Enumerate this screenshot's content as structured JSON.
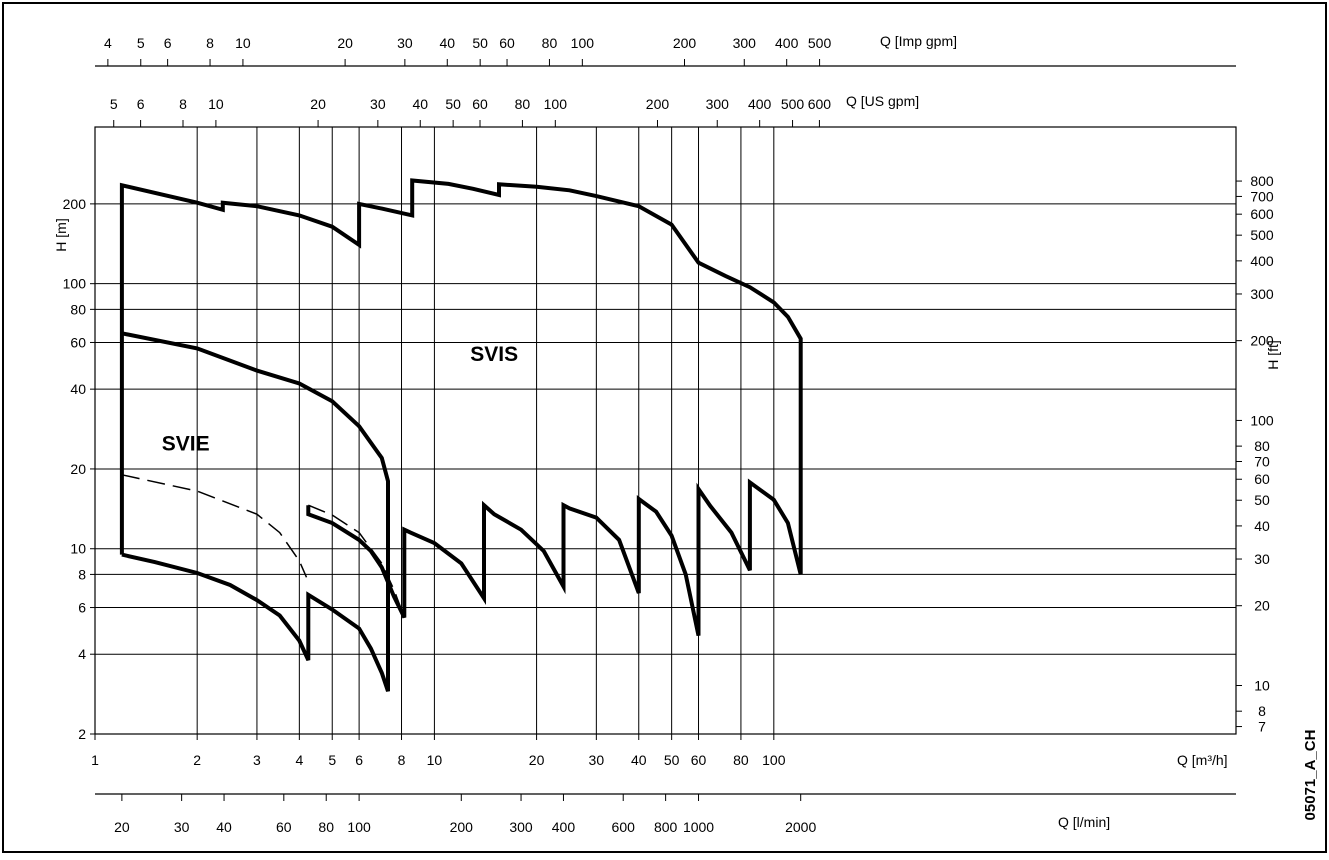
{
  "chart_data": {
    "type": "line",
    "x_scale": "log",
    "y_scale": "log",
    "xlim": [
      1,
      2300
    ],
    "ylim": [
      2,
      390
    ],
    "grid": true,
    "xlabel": "Q [m³/h]",
    "ylabel": "H [m]",
    "ylabel_right": "H [ft]",
    "xlabel_lmin": "Q [l/min]",
    "xlabel_usgpm": "Q [US gpm]",
    "xlabel_impgpm": "Q [Imp gpm]",
    "image_code": "05071_A_CH",
    "x_ticks": [
      {
        "v": 1,
        "label": "1"
      },
      {
        "v": 2,
        "label": "2"
      },
      {
        "v": 3,
        "label": "3"
      },
      {
        "v": 4,
        "label": "4"
      },
      {
        "v": 5,
        "label": "5"
      },
      {
        "v": 6,
        "label": "6"
      },
      {
        "v": 8,
        "label": "8"
      },
      {
        "v": 10,
        "label": "10"
      },
      {
        "v": 20,
        "label": "20"
      },
      {
        "v": 30,
        "label": "30"
      },
      {
        "v": 40,
        "label": "40"
      },
      {
        "v": 50,
        "label": "50"
      },
      {
        "v": 60,
        "label": "60"
      },
      {
        "v": 80,
        "label": "80"
      },
      {
        "v": 100,
        "label": "100"
      }
    ],
    "y_ticks": [
      {
        "v": 2,
        "label": "2"
      },
      {
        "v": 4,
        "label": "4"
      },
      {
        "v": 6,
        "label": "6"
      },
      {
        "v": 8,
        "label": "8"
      },
      {
        "v": 10,
        "label": "10"
      },
      {
        "v": 20,
        "label": "20"
      },
      {
        "v": 40,
        "label": "40"
      },
      {
        "v": 60,
        "label": "60"
      },
      {
        "v": 80,
        "label": "80"
      },
      {
        "v": 100,
        "label": "100"
      },
      {
        "v": 200,
        "label": "200"
      }
    ],
    "ft_ticks": [
      {
        "v": 7,
        "label": "7"
      },
      {
        "v": 8,
        "label": "8"
      },
      {
        "v": 10,
        "label": "10"
      },
      {
        "v": 20,
        "label": "20"
      },
      {
        "v": 30,
        "label": "30"
      },
      {
        "v": 40,
        "label": "40"
      },
      {
        "v": 50,
        "label": "50"
      },
      {
        "v": 60,
        "label": "60"
      },
      {
        "v": 70,
        "label": "70"
      },
      {
        "v": 80,
        "label": "80"
      },
      {
        "v": 100,
        "label": "100"
      },
      {
        "v": 200,
        "label": "200"
      },
      {
        "v": 300,
        "label": "300"
      },
      {
        "v": 400,
        "label": "400"
      },
      {
        "v": 500,
        "label": "500"
      },
      {
        "v": 600,
        "label": "600"
      },
      {
        "v": 700,
        "label": "700"
      },
      {
        "v": 800,
        "label": "800"
      }
    ],
    "lmin_ticks": [
      {
        "v": 20,
        "label": "20"
      },
      {
        "v": 30,
        "label": "30"
      },
      {
        "v": 40,
        "label": "40"
      },
      {
        "v": 60,
        "label": "60"
      },
      {
        "v": 80,
        "label": "80"
      },
      {
        "v": 100,
        "label": "100"
      },
      {
        "v": 200,
        "label": "200"
      },
      {
        "v": 300,
        "label": "300"
      },
      {
        "v": 400,
        "label": "400"
      },
      {
        "v": 600,
        "label": "600"
      },
      {
        "v": 800,
        "label": "800"
      },
      {
        "v": 1000,
        "label": "1000"
      },
      {
        "v": 2000,
        "label": "2000"
      }
    ],
    "usgpm_ticks": [
      {
        "v": 5,
        "label": "5"
      },
      {
        "v": 6,
        "label": "6"
      },
      {
        "v": 8,
        "label": "8"
      },
      {
        "v": 10,
        "label": "10"
      },
      {
        "v": 20,
        "label": "20"
      },
      {
        "v": 30,
        "label": "30"
      },
      {
        "v": 40,
        "label": "40"
      },
      {
        "v": 50,
        "label": "50"
      },
      {
        "v": 60,
        "label": "60"
      },
      {
        "v": 80,
        "label": "80"
      },
      {
        "v": 100,
        "label": "100"
      },
      {
        "v": 200,
        "label": "200"
      },
      {
        "v": 300,
        "label": "300"
      },
      {
        "v": 400,
        "label": "400"
      },
      {
        "v": 500,
        "label": "500"
      },
      {
        "v": 600,
        "label": "600"
      }
    ],
    "impgpm_ticks": [
      {
        "v": 4,
        "label": "4"
      },
      {
        "v": 5,
        "label": "5"
      },
      {
        "v": 6,
        "label": "6"
      },
      {
        "v": 8,
        "label": "8"
      },
      {
        "v": 10,
        "label": "10"
      },
      {
        "v": 20,
        "label": "20"
      },
      {
        "v": 30,
        "label": "30"
      },
      {
        "v": 40,
        "label": "40"
      },
      {
        "v": 50,
        "label": "50"
      },
      {
        "v": 60,
        "label": "60"
      },
      {
        "v": 80,
        "label": "80"
      },
      {
        "v": 100,
        "label": "100"
      },
      {
        "v": 200,
        "label": "200"
      },
      {
        "v": 300,
        "label": "300"
      },
      {
        "v": 400,
        "label": "400"
      },
      {
        "v": 500,
        "label": "500"
      }
    ],
    "annotations": [
      {
        "text": "SVIE",
        "x": 1.85,
        "y": 23.5
      },
      {
        "text": "SVIS",
        "x": 15.0,
        "y": 51
      }
    ],
    "series": [
      {
        "style": "solid",
        "points": [
          [
            1.2,
            9.5
          ],
          [
            1.2,
            235
          ],
          [
            2.0,
            202
          ],
          [
            2.38,
            190
          ],
          [
            2.38,
            202
          ],
          [
            3.0,
            196
          ],
          [
            4.0,
            181
          ],
          [
            5.0,
            164
          ],
          [
            6.0,
            140
          ],
          [
            6.0,
            200
          ],
          [
            7.0,
            192
          ],
          [
            8.6,
            181
          ],
          [
            8.6,
            245
          ],
          [
            11.0,
            238
          ],
          [
            13.0,
            228
          ],
          [
            15.5,
            216
          ],
          [
            15.5,
            237
          ],
          [
            20.0,
            232
          ],
          [
            25.0,
            225
          ],
          [
            30.0,
            214
          ],
          [
            40.0,
            196
          ],
          [
            50.0,
            167
          ],
          [
            60.0,
            120
          ],
          [
            72.0,
            107
          ],
          [
            85.0,
            97
          ],
          [
            100.0,
            85
          ],
          [
            110.0,
            75
          ],
          [
            120.0,
            62
          ],
          [
            120.0,
            8
          ],
          [
            110.0,
            12.5
          ],
          [
            100.0,
            15.3
          ],
          [
            85.0,
            17.8
          ],
          [
            85.0,
            8.3
          ],
          [
            75.0,
            11.5
          ],
          [
            65.0,
            14.5
          ],
          [
            60.0,
            16.8
          ],
          [
            60.0,
            4.7
          ],
          [
            55.0,
            8.0
          ],
          [
            50.0,
            11.2
          ],
          [
            45.0,
            13.8
          ],
          [
            40.0,
            15.4
          ],
          [
            40.0,
            6.8
          ],
          [
            35.0,
            10.8
          ],
          [
            30.0,
            13.1
          ],
          [
            25.0,
            14.2
          ],
          [
            24.0,
            14.6
          ],
          [
            24.0,
            7.2
          ],
          [
            21.0,
            9.8
          ],
          [
            18.0,
            11.8
          ],
          [
            15.0,
            13.5
          ],
          [
            14.0,
            14.6
          ],
          [
            14.0,
            6.5
          ],
          [
            12.0,
            8.8
          ],
          [
            10.0,
            10.5
          ],
          [
            8.5,
            11.5
          ],
          [
            8.15,
            11.8
          ],
          [
            8.15,
            5.5
          ],
          [
            7.6,
            6.6
          ],
          [
            7.0,
            8.5
          ],
          [
            6.5,
            9.8
          ],
          [
            6.0,
            10.8
          ],
          [
            5.0,
            12.5
          ],
          [
            4.25,
            13.5
          ],
          [
            4.25,
            14.6
          ]
        ]
      },
      {
        "style": "solid",
        "points": [
          [
            1.2,
            65
          ],
          [
            2.0,
            57
          ],
          [
            3.0,
            47
          ],
          [
            4.0,
            42
          ],
          [
            5.0,
            36
          ],
          [
            6.0,
            29
          ],
          [
            7.0,
            22
          ],
          [
            7.3,
            18
          ],
          [
            7.3,
            2.9
          ],
          [
            7.0,
            3.4
          ],
          [
            6.5,
            4.2
          ],
          [
            6.0,
            5.0
          ],
          [
            5.0,
            5.9
          ],
          [
            4.25,
            6.7
          ],
          [
            4.25,
            3.8
          ],
          [
            4.0,
            4.5
          ],
          [
            3.5,
            5.6
          ],
          [
            3.0,
            6.4
          ],
          [
            2.5,
            7.3
          ],
          [
            2.0,
            8.1
          ],
          [
            1.5,
            8.9
          ],
          [
            1.2,
            9.5
          ]
        ]
      },
      {
        "style": "dashed",
        "points": [
          [
            1.2,
            19
          ],
          [
            2.0,
            16.5
          ],
          [
            3.0,
            13.5
          ],
          [
            3.5,
            11.5
          ],
          [
            4.0,
            9.0
          ],
          [
            4.2,
            7.8
          ]
        ]
      },
      {
        "style": "dashed",
        "points": [
          [
            4.25,
            14.6
          ],
          [
            5.0,
            13.4
          ],
          [
            6.0,
            11.5
          ],
          [
            7.0,
            8.8
          ],
          [
            7.6,
            7.0
          ],
          [
            8.15,
            5.5
          ]
        ]
      }
    ]
  }
}
